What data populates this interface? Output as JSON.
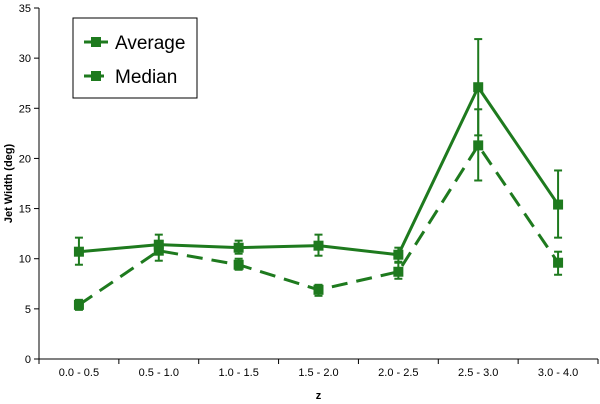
{
  "chart_data": {
    "type": "line",
    "xlabel": "z",
    "ylabel": "Jet Width (deg)",
    "ylim": [
      0,
      35
    ],
    "yticks": [
      0,
      5,
      10,
      15,
      20,
      25,
      30,
      35
    ],
    "categories": [
      "0.0 - 0.5",
      "0.5 - 1.0",
      "1.0 - 1.5",
      "1.5 - 2.0",
      "2.0 - 2.5",
      "2.5 - 3.0",
      "3.0 - 4.0"
    ],
    "grid": false,
    "legend_position": "top-left",
    "series": [
      {
        "name": "Average",
        "color": "#1e7a1e",
        "line_style": "solid",
        "marker": "square",
        "values": [
          10.7,
          11.4,
          11.1,
          11.3,
          10.4,
          27.1,
          15.4
        ],
        "error_low": [
          9.4,
          10.5,
          10.5,
          10.3,
          9.7,
          22.3,
          12.1
        ],
        "error_high": [
          12.1,
          12.4,
          11.8,
          12.4,
          11.1,
          31.9,
          18.8
        ]
      },
      {
        "name": "Median",
        "color": "#1e7a1e",
        "line_style": "dashed",
        "marker": "square",
        "values": [
          5.4,
          10.8,
          9.4,
          6.9,
          8.7,
          21.3,
          9.6
        ],
        "error_low": [
          4.9,
          9.8,
          8.9,
          6.3,
          8.0,
          17.8,
          8.4
        ],
        "error_high": [
          5.9,
          11.7,
          10.0,
          7.4,
          9.6,
          24.9,
          10.7
        ]
      }
    ]
  }
}
